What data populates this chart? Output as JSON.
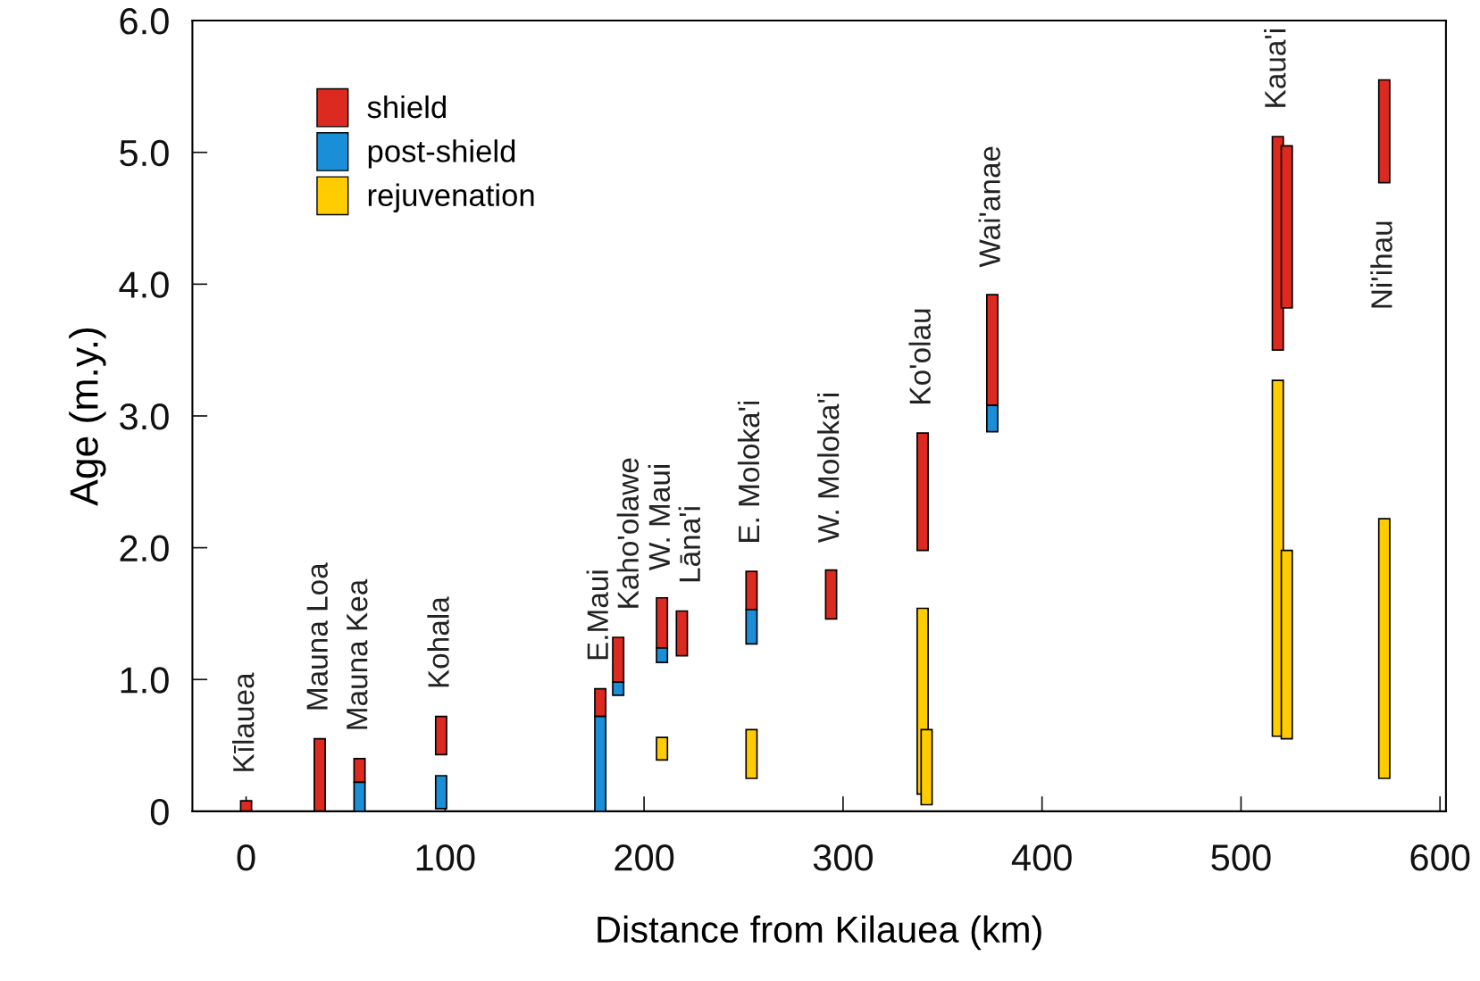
{
  "chart_data": {
    "type": "bar",
    "xlabel": "Distance from Kilauea (km)",
    "ylabel": "Age (m.y.)",
    "xlim": [
      -27,
      603
    ],
    "ylim": [
      0,
      6
    ],
    "xticks": [
      0,
      100,
      200,
      300,
      400,
      500,
      600
    ],
    "yticks": [
      0,
      {
        "value": 1,
        "label": "1.0"
      },
      {
        "value": 2,
        "label": "2.0"
      },
      {
        "value": 3,
        "label": "3.0"
      },
      {
        "value": 4,
        "label": "4.0"
      },
      {
        "value": 5,
        "label": "5.0"
      },
      {
        "value": 6,
        "label": "6.0"
      }
    ],
    "legend": "top left",
    "grid": false,
    "series": [
      {
        "name": "shield",
        "color": "#dd2a20",
        "x": [
          0,
          37,
          57,
          98,
          178,
          187,
          209,
          219,
          254,
          294,
          340,
          375,
          518.5,
          523,
          572
        ],
        "base": [
          0,
          0,
          0.22,
          0.43,
          0.72,
          0.98,
          1.24,
          1.18,
          1.53,
          1.46,
          1.98,
          3.08,
          3.5,
          3.82,
          4.77
        ],
        "values": [
          0.08,
          0.55,
          0.18,
          0.29,
          0.21,
          0.34,
          0.38,
          0.34,
          0.29,
          0.37,
          0.89,
          0.84,
          1.62,
          1.23,
          0.78
        ]
      },
      {
        "name": "post-shield",
        "color": "#1a8fd8",
        "x": [
          57,
          98,
          178,
          187,
          209,
          254,
          375
        ],
        "base": [
          0,
          0.02,
          0,
          0.88,
          1.13,
          1.27,
          2.88
        ],
        "values": [
          0.22,
          0.25,
          0.72,
          0.1,
          0.11,
          0.26,
          0.2
        ]
      },
      {
        "name": "rejuvenation",
        "color": "#ffcc00",
        "x": [
          209,
          254,
          340,
          342,
          518.5,
          523,
          572
        ],
        "base": [
          0.39,
          0.25,
          0.13,
          0.05,
          0.57,
          0.55,
          0.25
        ],
        "values": [
          0.17,
          0.37,
          1.41,
          0.57,
          2.7,
          1.43,
          1.97
        ]
      }
    ],
    "annotations": [
      {
        "text": "Kīlauea",
        "x": 0,
        "y": 0.08
      },
      {
        "text": "Mauna Loa",
        "x": 37,
        "y": 0.55
      },
      {
        "text": "Mauna Kea",
        "x": 57,
        "y": 0.4
      },
      {
        "text": "Kohala",
        "x": 98,
        "y": 0.72
      },
      {
        "text": "E.Maui",
        "x": 178,
        "y": 0.93
      },
      {
        "text": "Kaho'olawe",
        "x": 187,
        "y": 1.32
      },
      {
        "text": "W. Maui",
        "x": 209,
        "y": 1.62
      },
      {
        "text": "Lāna'i",
        "x": 219,
        "y": 1.52
      },
      {
        "text": "E. Moloka'i",
        "x": 254,
        "y": 1.82
      },
      {
        "text": "W. Moloka'i",
        "x": 294,
        "y": 1.83
      },
      {
        "text": "Ko'olau",
        "x": 340,
        "y": 2.87
      },
      {
        "text": "Wai'anae",
        "x": 375,
        "y": 3.92
      },
      {
        "text": "Kaua'i",
        "x": 518.5,
        "y": 5.12
      },
      {
        "text": "Ni'ihau",
        "x": 572,
        "y": 4.77
      }
    ]
  }
}
